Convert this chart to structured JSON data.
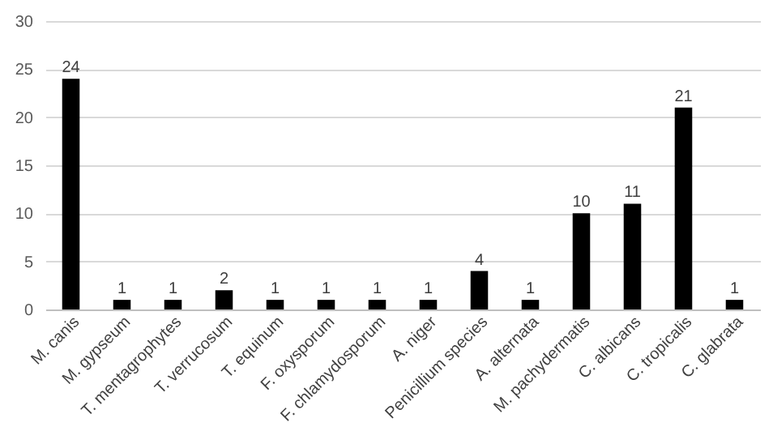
{
  "chart_data": {
    "type": "bar",
    "categories": [
      "M. canis",
      "M. gypseum",
      "T. mentagrophytes",
      "T. verrucosum",
      "T. equinum",
      "F. oxysporum",
      "F. chlamydosporum",
      "A. niger",
      "Penicillium species",
      "A. alternata",
      "M. pachydermatis",
      "C. albicans",
      "C. tropicalis",
      "C. glabrata"
    ],
    "values": [
      24,
      1,
      1,
      2,
      1,
      1,
      1,
      1,
      4,
      1,
      10,
      11,
      21,
      1
    ],
    "color": "#000000",
    "ylim": [
      0,
      30
    ],
    "yticks": [
      0,
      5,
      10,
      15,
      20,
      25,
      30
    ],
    "grid": "y",
    "data_labels": true
  }
}
